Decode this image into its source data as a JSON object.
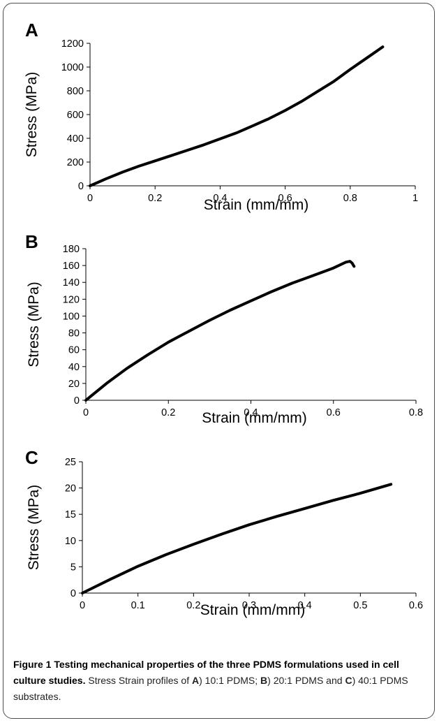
{
  "chart_data": [
    {
      "type": "line",
      "panel": "A",
      "xlabel": "Strain (mm/mm)",
      "ylabel": "Stress (MPa)",
      "xlim": [
        0,
        1
      ],
      "ylim": [
        0,
        1200
      ],
      "xticks": [
        0,
        0.2,
        0.4,
        0.6,
        0.8,
        1
      ],
      "xtick_labels": [
        "0",
        "0.2",
        "0.4",
        "0.6",
        "0.8",
        "1"
      ],
      "yticks": [
        0,
        200,
        400,
        600,
        800,
        1000,
        1200
      ],
      "ytick_labels": [
        "0",
        "200",
        "400",
        "600",
        "800",
        "1000",
        "1200"
      ],
      "grid": false,
      "series": [
        {
          "x": [
            0,
            0.05,
            0.1,
            0.15,
            0.2,
            0.25,
            0.3,
            0.35,
            0.4,
            0.45,
            0.5,
            0.55,
            0.6,
            0.65,
            0.7,
            0.75,
            0.8,
            0.85,
            0.9
          ],
          "y": [
            0,
            60,
            115,
            165,
            210,
            255,
            300,
            345,
            395,
            445,
            505,
            565,
            635,
            710,
            795,
            880,
            980,
            1075,
            1170
          ]
        }
      ]
    },
    {
      "type": "line",
      "panel": "B",
      "xlabel": "Strain (mm/mm)",
      "ylabel": "Stress (MPa)",
      "xlim": [
        0,
        0.8
      ],
      "ylim": [
        0,
        180
      ],
      "xticks": [
        0,
        0.2,
        0.4,
        0.6,
        0.8
      ],
      "xtick_labels": [
        "0",
        "0.2",
        "0.4",
        "0.6",
        "0.8"
      ],
      "yticks": [
        0,
        20,
        40,
        60,
        80,
        100,
        120,
        140,
        160,
        180
      ],
      "ytick_labels": [
        "0",
        "20",
        "40",
        "60",
        "80",
        "100",
        "120",
        "140",
        "160",
        "180"
      ],
      "grid": false,
      "series": [
        {
          "x": [
            0,
            0.05,
            0.1,
            0.15,
            0.2,
            0.25,
            0.3,
            0.35,
            0.4,
            0.45,
            0.5,
            0.55,
            0.6,
            0.63,
            0.64,
            0.645,
            0.65
          ],
          "y": [
            0,
            20,
            38,
            54,
            69,
            82,
            95,
            107,
            118,
            129,
            139,
            148,
            157,
            164,
            165,
            163,
            159
          ]
        }
      ]
    },
    {
      "type": "line",
      "panel": "C",
      "xlabel": "Strain (mm/mm)",
      "ylabel": "Stress (MPa)",
      "xlim": [
        0,
        0.6
      ],
      "ylim": [
        0,
        25
      ],
      "xticks": [
        0,
        0.1,
        0.2,
        0.3,
        0.4,
        0.5,
        0.6
      ],
      "xtick_labels": [
        "0",
        "0.1",
        "0.2",
        "0.3",
        "0.4",
        "0.5",
        "0.6"
      ],
      "yticks": [
        0,
        5,
        10,
        15,
        20,
        25
      ],
      "ytick_labels": [
        "0",
        "5",
        "10",
        "15",
        "20",
        "25"
      ],
      "grid": false,
      "series": [
        {
          "x": [
            0,
            0.05,
            0.1,
            0.15,
            0.2,
            0.25,
            0.3,
            0.35,
            0.4,
            0.45,
            0.5,
            0.555
          ],
          "y": [
            0,
            2.6,
            5.1,
            7.3,
            9.3,
            11.2,
            13.0,
            14.6,
            16.1,
            17.6,
            19.0,
            20.7
          ]
        }
      ]
    }
  ],
  "caption": {
    "title": "Figure 1 Testing mechanical properties of the three PDMS formulations used in cell culture studies.",
    "text_1": " Stress Strain profiles of ",
    "label_a": "A",
    "text_2": ") 10:1 PDMS; ",
    "label_b": "B",
    "text_3": ") 20:1 PDMS and ",
    "label_c": "C",
    "text_4": ") 40:1 PDMS substrates."
  }
}
